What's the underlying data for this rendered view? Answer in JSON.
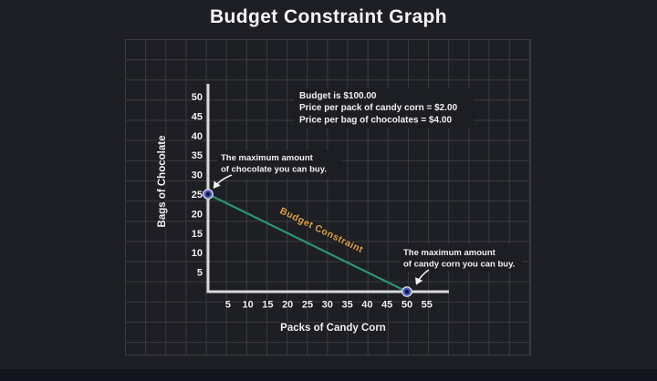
{
  "title": "Budget Constraint Graph",
  "colors": {
    "background": "#1d1e23",
    "grid_line": "#3a3b41",
    "axis": "#d9d9d9",
    "text": "#f0f0f0",
    "line": "#2e9370",
    "line_label_color": "#dfa23e",
    "point_fill": "#4254c5",
    "point_ring": "#d9d9de",
    "point_core": "#101528",
    "bottom_bar": "#14161f"
  },
  "chart_data": {
    "type": "line",
    "title": "Budget Constraint Graph",
    "xlabel": "Packs of Candy Corn",
    "ylabel": "Bags of Chocolate",
    "x_ticks": [
      5,
      10,
      15,
      20,
      25,
      30,
      35,
      40,
      45,
      50,
      55
    ],
    "y_ticks": [
      5,
      10,
      15,
      20,
      25,
      30,
      35,
      40,
      45,
      50
    ],
    "xlim": [
      0,
      58
    ],
    "ylim": [
      0,
      54
    ],
    "grid": true,
    "legend": "none",
    "series": [
      {
        "name": "Budget Constraint",
        "points": [
          [
            0,
            25
          ],
          [
            50,
            0
          ]
        ]
      }
    ],
    "markers": [
      {
        "x": 0,
        "y": 25
      },
      {
        "x": 50,
        "y": 0
      }
    ],
    "info_lines": [
      "Budget is $100.00",
      "Price per pack of candy corn = $2.00",
      "Price per bag of chocolates = $4.00"
    ],
    "annotations": [
      {
        "lines": [
          "The maximum amount",
          "of chocolate you can buy."
        ],
        "target": [
          0,
          25
        ]
      },
      {
        "lines": [
          "The maximum amount",
          "of candy corn you can buy."
        ],
        "target": [
          50,
          0
        ]
      }
    ]
  }
}
